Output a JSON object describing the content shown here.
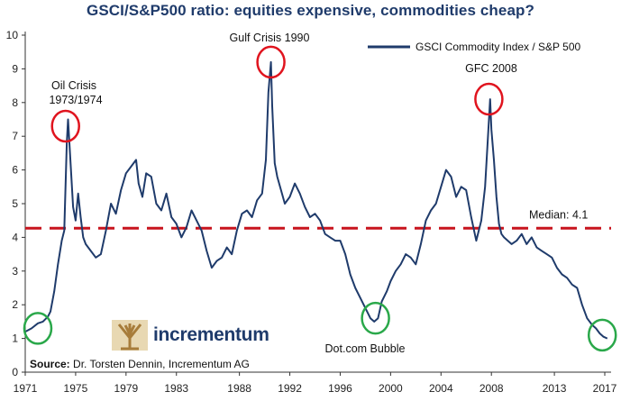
{
  "chart_data": {
    "type": "line",
    "title": "GSCI/S&P500 ratio: equities expensive, commodities cheap?",
    "xlabel": "",
    "ylabel": "",
    "ylim": [
      0,
      10
    ],
    "xlim": [
      1971,
      2017.5
    ],
    "yticks": [
      0,
      1,
      2,
      3,
      4,
      5,
      6,
      7,
      8,
      9,
      10
    ],
    "xtick_labels": [
      "1971",
      "1975",
      "1979",
      "1983",
      "1988",
      "1992",
      "1996",
      "2000",
      "2004",
      "2008",
      "2013",
      "2017"
    ],
    "xtick_values": [
      1971,
      1975,
      1979,
      1983,
      1988,
      1992,
      1996,
      2000,
      2004,
      2008,
      2013,
      2017
    ],
    "legend": {
      "label": "GSCI Commodity Index / S&P 500",
      "position": "top-right"
    },
    "series": [
      {
        "name": "GSCI Commodity Index / S&P 500",
        "color": "#1f3b6b",
        "x": [
          1971.0,
          1971.5,
          1972.0,
          1972.4,
          1972.8,
          1973.0,
          1973.3,
          1973.6,
          1973.9,
          1974.1,
          1974.3,
          1974.4,
          1974.6,
          1974.8,
          1975.0,
          1975.2,
          1975.4,
          1975.6,
          1975.8,
          1976.2,
          1976.6,
          1977.0,
          1977.4,
          1977.8,
          1978.2,
          1978.6,
          1979.0,
          1979.4,
          1979.8,
          1980.0,
          1980.3,
          1980.6,
          1981.0,
          1981.4,
          1981.8,
          1982.2,
          1982.6,
          1983.0,
          1983.4,
          1983.8,
          1984.2,
          1984.6,
          1985.0,
          1985.4,
          1985.8,
          1986.2,
          1986.6,
          1987.0,
          1987.4,
          1987.8,
          1988.2,
          1988.6,
          1989.0,
          1989.4,
          1989.8,
          1990.1,
          1990.3,
          1990.5,
          1990.6,
          1990.8,
          1991.0,
          1991.3,
          1991.6,
          1992.0,
          1992.4,
          1992.8,
          1993.2,
          1993.6,
          1994.0,
          1994.4,
          1994.8,
          1995.2,
          1995.6,
          1996.0,
          1996.4,
          1996.8,
          1997.2,
          1997.6,
          1998.0,
          1998.4,
          1998.7,
          1999.0,
          1999.3,
          1999.7,
          2000.0,
          2000.4,
          2000.8,
          2001.2,
          2001.6,
          2002.0,
          2002.4,
          2002.8,
          2003.2,
          2003.6,
          2004.0,
          2004.4,
          2004.8,
          2005.2,
          2005.6,
          2006.0,
          2006.4,
          2006.8,
          2007.2,
          2007.5,
          2007.7,
          2007.9,
          2008.0,
          2008.2,
          2008.4,
          2008.6,
          2008.8,
          2009.0,
          2009.3,
          2009.6,
          2010.0,
          2010.4,
          2010.8,
          2011.2,
          2011.6,
          2012.0,
          2012.4,
          2012.8,
          2013.2,
          2013.6,
          2014.0,
          2014.4,
          2014.8,
          2015.2,
          2015.6,
          2016.0,
          2016.3,
          2016.6,
          2016.9,
          2017.2
        ],
        "values": [
          1.2,
          1.3,
          1.45,
          1.5,
          1.65,
          1.8,
          2.4,
          3.2,
          3.9,
          4.2,
          6.8,
          7.5,
          6.2,
          4.9,
          4.5,
          5.3,
          4.6,
          4.0,
          3.8,
          3.6,
          3.4,
          3.5,
          4.2,
          5.0,
          4.7,
          5.4,
          5.9,
          6.1,
          6.3,
          5.6,
          5.2,
          5.9,
          5.8,
          5.0,
          4.8,
          5.3,
          4.6,
          4.4,
          4.0,
          4.3,
          4.8,
          4.5,
          4.2,
          3.6,
          3.1,
          3.3,
          3.4,
          3.7,
          3.5,
          4.2,
          4.7,
          4.8,
          4.6,
          5.1,
          5.3,
          6.3,
          8.3,
          9.2,
          7.9,
          6.2,
          5.8,
          5.4,
          5.0,
          5.2,
          5.6,
          5.3,
          4.9,
          4.6,
          4.7,
          4.5,
          4.1,
          4.0,
          3.9,
          3.9,
          3.5,
          2.9,
          2.5,
          2.2,
          1.9,
          1.6,
          1.5,
          1.6,
          2.1,
          2.4,
          2.7,
          3.0,
          3.2,
          3.5,
          3.4,
          3.2,
          3.8,
          4.5,
          4.8,
          5.0,
          5.5,
          6.0,
          5.8,
          5.2,
          5.5,
          5.4,
          4.6,
          3.9,
          4.5,
          5.5,
          6.8,
          8.1,
          7.2,
          6.3,
          5.2,
          4.4,
          4.1,
          4.0,
          3.9,
          3.8,
          3.9,
          4.1,
          3.8,
          4.0,
          3.7,
          3.6,
          3.5,
          3.4,
          3.1,
          2.9,
          2.8,
          2.6,
          2.5,
          2.0,
          1.6,
          1.4,
          1.3,
          1.15,
          1.05,
          1.0
        ]
      }
    ],
    "median": {
      "value": 4.1,
      "label": "Median: 4.1",
      "color": "#c8141e"
    },
    "annotations": [
      {
        "id": "oil",
        "lines": [
          "Oil Crisis",
          "1973/1974"
        ]
      },
      {
        "id": "gulf",
        "lines": [
          "Gulf Crisis 1990"
        ]
      },
      {
        "id": "gfc",
        "lines": [
          "GFC 2008"
        ]
      },
      {
        "id": "dotcom",
        "lines": [
          "Dot.com Bubble"
        ]
      }
    ],
    "highlights": [
      {
        "name": "oil-crisis-peak",
        "x": 1974.2,
        "y": 7.3,
        "color": "#e0141e"
      },
      {
        "name": "gulf-crisis-peak",
        "x": 1990.5,
        "y": 9.2,
        "color": "#e0141e"
      },
      {
        "name": "gfc-peak",
        "x": 2007.8,
        "y": 8.1,
        "color": "#e0141e"
      },
      {
        "name": "early-low",
        "x": 1972.0,
        "y": 1.3,
        "color": "#2aa84a"
      },
      {
        "name": "dotcom-low",
        "x": 1998.8,
        "y": 1.6,
        "color": "#2aa84a"
      },
      {
        "name": "recent-low",
        "x": 2016.8,
        "y": 1.1,
        "color": "#2aa84a"
      }
    ]
  },
  "source": {
    "label": "Source:",
    "text": " Dr. Torsten Dennin, Incrementum AG"
  },
  "logo": {
    "name": "incrementum"
  }
}
